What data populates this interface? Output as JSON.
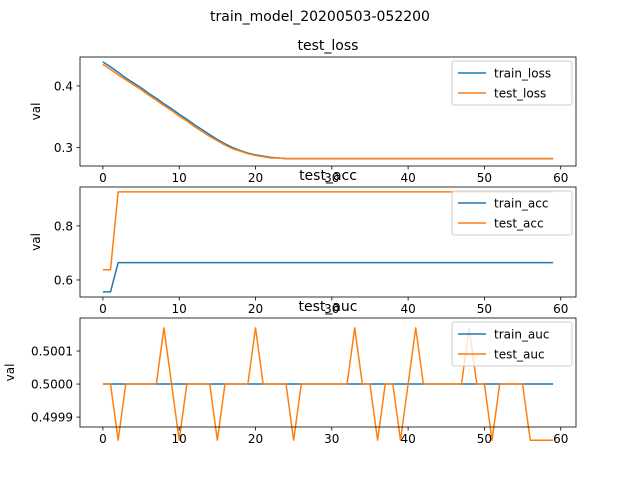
{
  "figure": {
    "suptitle": "train_model_20200503-052200"
  },
  "colors": {
    "train": "#1f77b4",
    "test": "#ff7f0e"
  },
  "chart_data": [
    {
      "type": "line",
      "title": "test_loss",
      "ylabel": "val",
      "xlim": [
        -3,
        62
      ],
      "ylim": [
        0.27,
        0.447
      ],
      "xticks": [
        0,
        10,
        20,
        30,
        40,
        50,
        60
      ],
      "yticks": [
        0.3,
        0.4
      ],
      "yticklabels": [
        "0.3",
        "0.4"
      ],
      "legend": "top-right",
      "series": [
        {
          "name": "train_loss",
          "values": [
            0.439,
            0.431,
            0.422,
            0.413,
            0.405,
            0.397,
            0.388,
            0.38,
            0.371,
            0.363,
            0.354,
            0.346,
            0.337,
            0.329,
            0.321,
            0.313,
            0.306,
            0.3,
            0.295,
            0.291,
            0.288,
            0.286,
            0.284,
            0.283,
            0.282,
            0.282,
            0.282,
            0.282,
            0.282,
            0.282,
            0.282,
            0.282,
            0.282,
            0.282,
            0.282,
            0.282,
            0.282,
            0.282,
            0.282,
            0.282,
            0.282,
            0.282,
            0.282,
            0.282,
            0.282,
            0.282,
            0.282,
            0.282,
            0.282,
            0.282,
            0.282,
            0.282,
            0.282,
            0.282,
            0.282,
            0.282,
            0.282,
            0.282,
            0.282,
            0.282
          ]
        },
        {
          "name": "test_loss",
          "values": [
            0.435,
            0.427,
            0.418,
            0.41,
            0.402,
            0.394,
            0.385,
            0.377,
            0.368,
            0.36,
            0.351,
            0.343,
            0.334,
            0.326,
            0.318,
            0.311,
            0.304,
            0.298,
            0.294,
            0.29,
            0.287,
            0.285,
            0.283,
            0.283,
            0.282,
            0.282,
            0.282,
            0.282,
            0.282,
            0.282,
            0.282,
            0.282,
            0.282,
            0.282,
            0.282,
            0.282,
            0.282,
            0.282,
            0.282,
            0.282,
            0.282,
            0.282,
            0.282,
            0.282,
            0.282,
            0.282,
            0.282,
            0.282,
            0.282,
            0.282,
            0.282,
            0.282,
            0.282,
            0.282,
            0.282,
            0.282,
            0.282,
            0.282,
            0.282,
            0.282
          ]
        }
      ]
    },
    {
      "type": "line",
      "title": "test_acc",
      "ylabel": "val",
      "xlim": [
        -3,
        62
      ],
      "ylim": [
        0.537,
        0.944
      ],
      "xticks": [
        0,
        10,
        20,
        30,
        40,
        50,
        60
      ],
      "yticks": [
        0.6,
        0.8
      ],
      "yticklabels": [
        "0.6",
        "0.8"
      ],
      "legend": "top-right",
      "series": [
        {
          "name": "train_acc",
          "values": [
            0.556,
            0.556,
            0.664,
            0.664,
            0.664,
            0.664,
            0.664,
            0.664,
            0.664,
            0.664,
            0.664,
            0.664,
            0.664,
            0.664,
            0.664,
            0.664,
            0.664,
            0.664,
            0.664,
            0.664,
            0.664,
            0.664,
            0.664,
            0.664,
            0.664,
            0.664,
            0.664,
            0.664,
            0.664,
            0.664,
            0.664,
            0.664,
            0.664,
            0.664,
            0.664,
            0.664,
            0.664,
            0.664,
            0.664,
            0.664,
            0.664,
            0.664,
            0.664,
            0.664,
            0.664,
            0.664,
            0.664,
            0.664,
            0.664,
            0.664,
            0.664,
            0.664,
            0.664,
            0.664,
            0.664,
            0.664,
            0.664,
            0.664,
            0.664,
            0.664
          ]
        },
        {
          "name": "test_acc",
          "values": [
            0.638,
            0.638,
            0.926,
            0.926,
            0.926,
            0.926,
            0.926,
            0.926,
            0.926,
            0.926,
            0.926,
            0.926,
            0.926,
            0.926,
            0.926,
            0.926,
            0.926,
            0.926,
            0.926,
            0.926,
            0.926,
            0.926,
            0.926,
            0.926,
            0.926,
            0.926,
            0.926,
            0.926,
            0.926,
            0.926,
            0.926,
            0.926,
            0.926,
            0.926,
            0.926,
            0.926,
            0.926,
            0.926,
            0.926,
            0.926,
            0.926,
            0.926,
            0.926,
            0.926,
            0.926,
            0.926,
            0.926,
            0.926,
            0.926,
            0.926,
            0.926,
            0.926,
            0.926,
            0.926,
            0.926,
            0.926,
            0.926,
            0.926,
            0.926,
            0.926
          ]
        }
      ]
    },
    {
      "type": "line",
      "title": "test_auc",
      "ylabel": "val",
      "xlim": [
        -3,
        62
      ],
      "ylim": [
        0.49987,
        0.5002
      ],
      "xticks": [
        0,
        10,
        20,
        30,
        40,
        50,
        60
      ],
      "yticks": [
        0.4999,
        0.5,
        0.5001
      ],
      "yticklabels": [
        "0.4999",
        "0.5000",
        "0.5001"
      ],
      "legend": "top-right",
      "series": [
        {
          "name": "train_auc",
          "values": [
            0.5,
            0.5,
            0.5,
            0.5,
            0.5,
            0.5,
            0.5,
            0.5,
            0.5,
            0.5,
            0.5,
            0.5,
            0.5,
            0.5,
            0.5,
            0.5,
            0.5,
            0.5,
            0.5,
            0.5,
            0.5,
            0.5,
            0.5,
            0.5,
            0.5,
            0.5,
            0.5,
            0.5,
            0.5,
            0.5,
            0.5,
            0.5,
            0.5,
            0.5,
            0.5,
            0.5,
            0.5,
            0.5,
            0.5,
            0.5,
            0.5,
            0.5,
            0.5,
            0.5,
            0.5,
            0.5,
            0.5,
            0.5,
            0.5,
            0.5,
            0.5,
            0.5,
            0.5,
            0.5,
            0.5,
            0.5,
            0.5,
            0.5,
            0.5,
            0.5
          ]
        },
        {
          "name": "test_auc",
          "values": [
            0.5,
            0.5,
            0.49983,
            0.5,
            0.5,
            0.5,
            0.5,
            0.5,
            0.50017,
            0.5,
            0.49983,
            0.5,
            0.5,
            0.5,
            0.5,
            0.49983,
            0.5,
            0.5,
            0.5,
            0.5,
            0.50017,
            0.5,
            0.5,
            0.5,
            0.5,
            0.49983,
            0.5,
            0.5,
            0.5,
            0.5,
            0.5,
            0.5,
            0.5,
            0.50017,
            0.5,
            0.5,
            0.49983,
            0.5,
            0.5,
            0.49983,
            0.5,
            0.50017,
            0.5,
            0.5,
            0.5,
            0.5,
            0.5,
            0.5,
            0.50017,
            0.5,
            0.5,
            0.49983,
            0.5,
            0.5,
            0.5,
            0.5,
            0.49983,
            0.49983,
            0.49983,
            0.49983
          ]
        }
      ]
    }
  ]
}
